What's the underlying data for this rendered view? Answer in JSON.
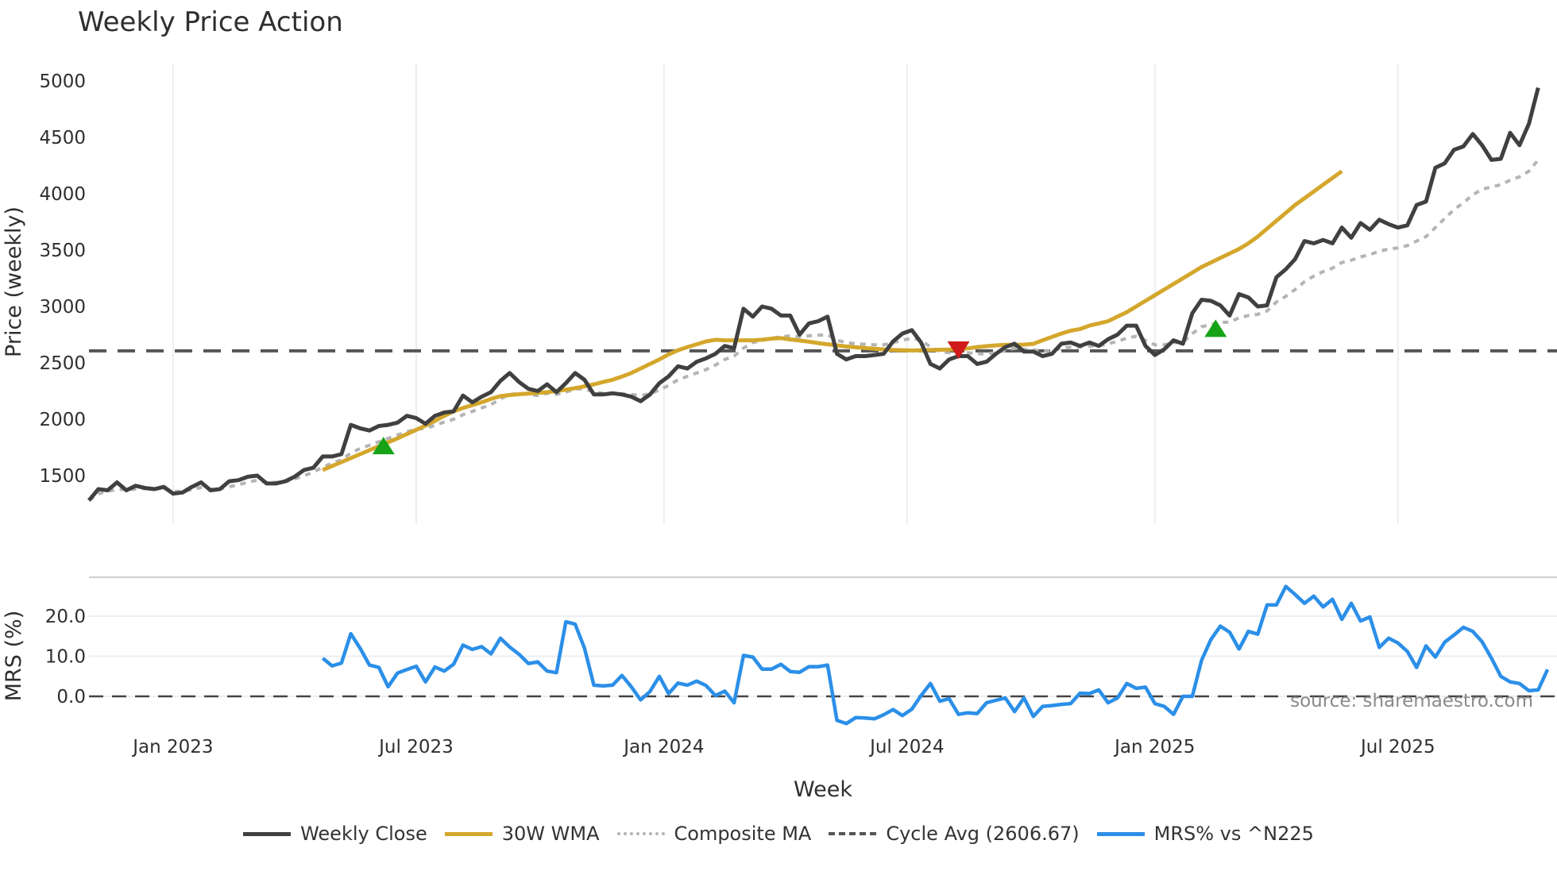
{
  "title": "Weekly Price Action",
  "source": "source: sharemaestro.com",
  "legend": [
    {
      "label": "Weekly Close",
      "color": "#404040",
      "style": "solid"
    },
    {
      "label": "30W WMA",
      "color": "#d4a72c",
      "style": "solid"
    },
    {
      "label": "Composite MA",
      "color": "#b4b4b4",
      "style": "dotted"
    },
    {
      "label": "Cycle Avg (2606.67)",
      "color": "#555555",
      "style": "dashed"
    },
    {
      "label": "MRS% vs ^N225",
      "color": "#2b8fe8",
      "style": "solid"
    }
  ],
  "chart_data": [
    {
      "type": "line",
      "title": "Weekly Price Action",
      "xlabel": "Week",
      "ylabel": "Price (weekly)",
      "ylim": [
        1170,
        5150
      ],
      "yticks": [
        1500,
        2000,
        2500,
        3000,
        3500,
        4000,
        4500,
        5000
      ],
      "xticks": [
        "Jan 2023",
        "Jul 2023",
        "Jan 2024",
        "Jul 2024",
        "Jan 2025",
        "Jul 2025"
      ],
      "xtick_week_index": [
        9,
        35,
        61.5,
        87.5,
        114,
        140
      ],
      "grid": {
        "x": true,
        "y": false
      },
      "x_start": "2022-10-31",
      "x_freq": "weekly",
      "cycle_avg": 2606.67,
      "series": [
        {
          "name": "Weekly Close",
          "color": "#404040",
          "values": [
            1280,
            1380,
            1370,
            1440,
            1370,
            1410,
            1390,
            1380,
            1400,
            1340,
            1350,
            1400,
            1440,
            1370,
            1380,
            1450,
            1460,
            1490,
            1500,
            1430,
            1430,
            1450,
            1490,
            1550,
            1570,
            1670,
            1670,
            1690,
            1950,
            1920,
            1900,
            1940,
            1950,
            1970,
            2030,
            2010,
            1960,
            2030,
            2060,
            2070,
            2210,
            2150,
            2200,
            2240,
            2340,
            2410,
            2330,
            2270,
            2250,
            2310,
            2240,
            2320,
            2410,
            2350,
            2220,
            2220,
            2230,
            2220,
            2200,
            2160,
            2220,
            2320,
            2380,
            2470,
            2450,
            2510,
            2540,
            2580,
            2650,
            2630,
            2980,
            2910,
            3000,
            2980,
            2920,
            2920,
            2750,
            2850,
            2870,
            2910,
            2580,
            2530,
            2560,
            2560,
            2570,
            2580,
            2690,
            2760,
            2790,
            2680,
            2490,
            2450,
            2530,
            2560,
            2560,
            2490,
            2510,
            2580,
            2640,
            2670,
            2600,
            2600,
            2560,
            2580,
            2670,
            2680,
            2650,
            2680,
            2650,
            2710,
            2750,
            2830,
            2830,
            2650,
            2570,
            2620,
            2700,
            2670,
            2940,
            3060,
            3050,
            3010,
            2920,
            3110,
            3080,
            3000,
            3010,
            3260,
            3330,
            3420,
            3580,
            3560,
            3590,
            3560,
            3700,
            3610,
            3740,
            3680,
            3770,
            3730,
            3700,
            3720,
            3900,
            3930,
            4230,
            4270,
            4390,
            4420,
            4530,
            4430,
            4300,
            4310,
            4540,
            4430,
            4620,
            4940
          ]
        },
        {
          "name": "30W WMA",
          "color": "#d4a72c",
          "start_index": 25,
          "values": [
            1550,
            1585,
            1620,
            1655,
            1690,
            1725,
            1760,
            1795,
            1830,
            1868,
            1906,
            1944,
            1985,
            2030,
            2070,
            2100,
            2125,
            2150,
            2180,
            2205,
            2215,
            2222,
            2228,
            2234,
            2240,
            2250,
            2262,
            2275,
            2292,
            2310,
            2330,
            2350,
            2378,
            2410,
            2450,
            2490,
            2530,
            2575,
            2612,
            2640,
            2665,
            2690,
            2705,
            2700,
            2700,
            2700,
            2700,
            2705,
            2715,
            2720,
            2708,
            2698,
            2688,
            2675,
            2665,
            2655,
            2645,
            2638,
            2632,
            2625,
            2620,
            2615,
            2612,
            2610,
            2612,
            2614,
            2616,
            2618,
            2622,
            2628,
            2640,
            2648,
            2655,
            2660,
            2660,
            2662,
            2668,
            2700,
            2730,
            2760,
            2785,
            2800,
            2830,
            2850,
            2870,
            2910,
            2950,
            3000,
            3050,
            3100,
            3150,
            3200,
            3250,
            3300,
            3350,
            3390,
            3430,
            3470,
            3510,
            3560,
            3620,
            3690,
            3760,
            3830,
            3900,
            3960,
            4020,
            4080,
            4140,
            4200
          ]
        },
        {
          "name": "Composite MA",
          "color": "#b4b4b4",
          "values": [
            1280,
            1340,
            1360,
            1380,
            1375,
            1380,
            1385,
            1380,
            1385,
            1360,
            1360,
            1375,
            1395,
            1380,
            1380,
            1400,
            1420,
            1440,
            1460,
            1440,
            1440,
            1445,
            1470,
            1500,
            1530,
            1575,
            1610,
            1640,
            1700,
            1740,
            1770,
            1800,
            1830,
            1860,
            1890,
            1910,
            1920,
            1945,
            1975,
            2000,
            2040,
            2070,
            2100,
            2130,
            2180,
            2220,
            2230,
            2220,
            2210,
            2230,
            2220,
            2240,
            2270,
            2270,
            2240,
            2230,
            2230,
            2225,
            2220,
            2210,
            2225,
            2260,
            2300,
            2350,
            2380,
            2410,
            2440,
            2480,
            2530,
            2560,
            2630,
            2680,
            2700,
            2720,
            2730,
            2740,
            2730,
            2740,
            2745,
            2750,
            2700,
            2680,
            2670,
            2665,
            2660,
            2660,
            2680,
            2700,
            2720,
            2700,
            2640,
            2600,
            2590,
            2590,
            2590,
            2580,
            2580,
            2590,
            2610,
            2630,
            2620,
            2615,
            2605,
            2605,
            2630,
            2640,
            2640,
            2650,
            2650,
            2670,
            2690,
            2720,
            2735,
            2700,
            2660,
            2660,
            2680,
            2680,
            2760,
            2820,
            2840,
            2860,
            2860,
            2900,
            2920,
            2930,
            2960,
            3040,
            3090,
            3150,
            3220,
            3270,
            3310,
            3340,
            3390,
            3410,
            3440,
            3460,
            3490,
            3510,
            3520,
            3540,
            3580,
            3620,
            3700,
            3780,
            3860,
            3920,
            3990,
            4040,
            4060,
            4080,
            4120,
            4150,
            4200,
            4300
          ]
        },
        {
          "name": "Cycle Avg (2606.67)",
          "color": "#555555",
          "constant": 2606.67
        }
      ],
      "markers": [
        {
          "type": "buy",
          "shape": "triangle-up",
          "color": "#17a317",
          "week_index": 31.5,
          "value": 1760
        },
        {
          "type": "sell",
          "shape": "triangle-down",
          "color": "#d11a1a",
          "week_index": 93,
          "value": 2620
        },
        {
          "type": "buy",
          "shape": "triangle-up",
          "color": "#17a317",
          "week_index": 120.5,
          "value": 2800
        }
      ]
    },
    {
      "type": "line",
      "title": "",
      "xlabel": "Week",
      "ylabel": "MRS (%)",
      "ylim": [
        -9,
        30
      ],
      "yticks": [
        0.0,
        10.0,
        20.0
      ],
      "ytick_labels": [
        "0.0",
        "10.0",
        "20.0"
      ],
      "grid": {
        "x": false,
        "y": true
      },
      "series": [
        {
          "name": "MRS% vs ^N225",
          "color": "#2b8fe8",
          "start_index": 25,
          "values": [
            9.5,
            7.6,
            8.3,
            15.6,
            12.0,
            7.8,
            7.2,
            2.4,
            5.8,
            6.7,
            7.5,
            3.6,
            7.3,
            6.3,
            8.0,
            12.8,
            11.7,
            12.4,
            10.6,
            14.5,
            12.3,
            10.5,
            8.2,
            8.6,
            6.3,
            5.9,
            18.6,
            18.0,
            12.0,
            2.8,
            2.6,
            2.8,
            5.2,
            2.4,
            -0.9,
            1.2,
            5.0,
            0.7,
            3.3,
            2.8,
            3.8,
            2.7,
            0.2,
            1.3,
            -1.6,
            10.2,
            9.8,
            6.8,
            6.8,
            8.0,
            6.2,
            6.0,
            7.4,
            7.4,
            7.8,
            -6.0,
            -6.8,
            -5.3,
            -5.4,
            -5.6,
            -4.6,
            -3.3,
            -4.8,
            -3.2,
            0.2,
            3.2,
            -1.2,
            -0.6,
            -4.5,
            -4.1,
            -4.3,
            -1.6,
            -1.0,
            -0.4,
            -3.8,
            -0.4,
            -5.0,
            -2.5,
            -2.3,
            -2.0,
            -1.8,
            0.8,
            0.7,
            1.6,
            -1.6,
            -0.4,
            3.2,
            2.0,
            2.3,
            -1.8,
            -2.5,
            -4.5,
            0.0,
            0.0,
            9.0,
            14.2,
            17.5,
            16.0,
            11.8,
            16.2,
            15.5,
            22.8,
            22.8,
            27.4,
            25.4,
            23.2,
            25.0,
            22.3,
            24.2,
            19.2,
            23.2,
            18.8,
            19.8,
            12.2,
            14.5,
            13.3,
            11.2,
            7.2,
            12.6,
            9.8,
            13.5,
            15.3,
            17.2,
            16.2,
            13.6,
            9.5,
            5.0,
            3.6,
            3.2,
            1.4,
            1.6,
            6.7
          ]
        },
        {
          "name": "zero-line",
          "color": "#444444",
          "constant": 0.0,
          "style": "dashed"
        }
      ]
    }
  ]
}
